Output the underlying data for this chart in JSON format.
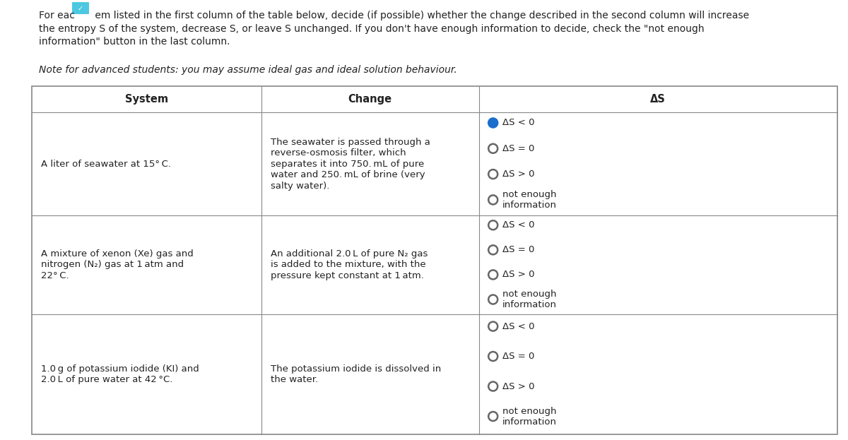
{
  "bg_color": "#ffffff",
  "text_color": "#222222",
  "border_color": "#888888",
  "figsize": [
    12.0,
    6.23
  ],
  "dpi": 100,
  "intro_line1": "For eac   em listed in the first column of the table below, decide (if possible) whether the change described in the second column will increase",
  "intro_line2": "the entropy S of the system, decrease S, or leave S unchanged. If you don't have enough information to decide, check the \"not enough",
  "intro_line3": "information\" button in the last column.",
  "note": "Note for advanced students: you may assume ideal gas and ideal solution behaviour.",
  "col_headers": [
    "System",
    "Change",
    "ΔS"
  ],
  "rows": [
    {
      "system": "A liter of seawater at 15° C.",
      "change_lines": [
        "The seawater is passed through a",
        "reverse-osmosis filter, which",
        "separates it into 750. mL of pure",
        "water and 250. mL of brine (very",
        "salty water)."
      ],
      "system_lines": [
        "A liter of seawater at 15° C."
      ],
      "options": [
        "ΔS < 0",
        "ΔS = 0",
        "ΔS > 0",
        "not enough\ninformation"
      ],
      "selected": 0
    },
    {
      "system_lines": [
        "A mixture of xenon (Xe) gas and",
        "nitrogen (N₂) gas at 1 atm and",
        "22° C."
      ],
      "change_lines": [
        "An additional 2.0 L of pure N₂ gas",
        "is added to the mixture, with the",
        "pressure kept constant at 1 atm."
      ],
      "options": [
        "ΔS < 0",
        "ΔS = 0",
        "ΔS > 0",
        "not enough\ninformation"
      ],
      "selected": -1
    },
    {
      "system_lines": [
        "1.0 g of potassium iodide (KI) and",
        "2.0 L of pure water at 42 °C."
      ],
      "change_lines": [
        "The potassium iodide is dissolved in",
        "the water."
      ],
      "options": [
        "ΔS < 0",
        "ΔS = 0",
        "ΔS > 0",
        "not enough\ninformation"
      ],
      "selected": -1
    }
  ]
}
